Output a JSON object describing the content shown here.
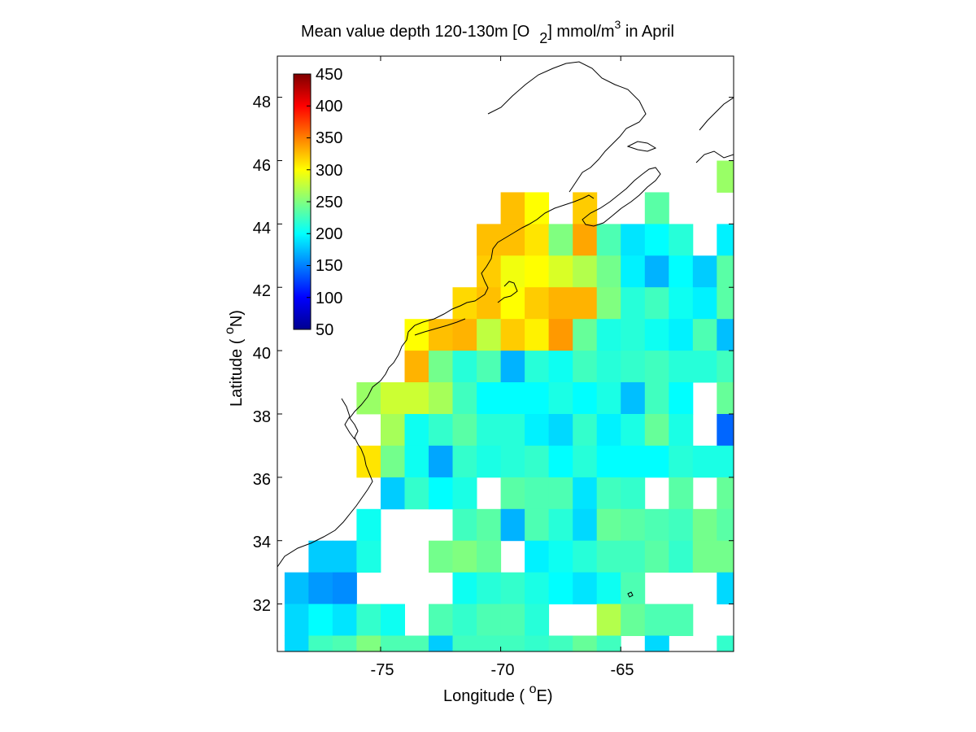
{
  "title": {
    "main": "Mean value depth 120-130m [O",
    "sub": "2",
    "mid": "] mmol/m",
    "sup": "3",
    "end": " in April"
  },
  "axes": {
    "x_label_pre": "Longitude ( ",
    "x_label_deg": "o",
    "x_label_post": "E)",
    "y_label_pre": "Latitude ( ",
    "y_label_deg": "o",
    "y_label_post": "N)",
    "x_ticks": [
      "-75",
      "-70",
      "-65"
    ],
    "y_ticks": [
      "32",
      "34",
      "36",
      "38",
      "40",
      "42",
      "44",
      "46",
      "48"
    ]
  },
  "colorbar": {
    "ticks": [
      "50",
      "100",
      "150",
      "200",
      "250",
      "300",
      "350",
      "400",
      "450"
    ],
    "colormap": "jet"
  },
  "chart_data": {
    "type": "heatmap",
    "title": "Mean value depth 120-130m [O2] mmol/m3 in April",
    "xlabel": "Longitude ( oE)",
    "ylabel": "Latitude ( oN)",
    "units": "mmol/m3",
    "xlim": [
      -79.3,
      -60.3
    ],
    "ylim": [
      30.5,
      49.3
    ],
    "clim": [
      50,
      450
    ],
    "cell_size_deg": 1,
    "grid": false,
    "colorbar_position": "top-left",
    "lon_columns": [
      -78.5,
      -77.5,
      -76.5,
      -75.5,
      -74.5,
      -73.5,
      -72.5,
      -71.5,
      -70.5,
      -69.5,
      -68.5,
      -67.5,
      -66.5,
      -65.5,
      -64.5,
      -63.5,
      -62.5,
      -61.5,
      -60.5
    ],
    "rows": [
      {
        "lat": 44.5,
        "values": [
          null,
          null,
          null,
          null,
          null,
          null,
          null,
          null,
          null,
          325,
          300,
          null,
          320,
          null,
          null,
          235,
          null,
          null,
          null
        ]
      },
      {
        "lat": 43.5,
        "values": [
          null,
          null,
          null,
          null,
          null,
          null,
          null,
          null,
          325,
          325,
          310,
          250,
          335,
          230,
          190,
          200,
          215,
          null,
          195
        ]
      },
      {
        "lat": 42.5,
        "values": [
          null,
          null,
          null,
          null,
          null,
          null,
          null,
          null,
          320,
          295,
          300,
          285,
          270,
          245,
          195,
          170,
          200,
          180,
          235
        ]
      },
      {
        "lat": 41.5,
        "values": [
          null,
          null,
          null,
          null,
          null,
          null,
          null,
          315,
          325,
          300,
          320,
          330,
          330,
          250,
          215,
          225,
          205,
          195,
          235
        ]
      },
      {
        "lat": 40.5,
        "values": [
          null,
          null,
          null,
          null,
          null,
          300,
          325,
          330,
          275,
          320,
          305,
          340,
          240,
          210,
          215,
          205,
          195,
          230,
          175
        ]
      },
      {
        "lat": 39.5,
        "values": [
          null,
          null,
          null,
          null,
          null,
          330,
          245,
          215,
          230,
          170,
          215,
          205,
          225,
          215,
          220,
          225,
          215,
          215,
          225
        ]
      },
      {
        "lat": 38.5,
        "values": [
          null,
          null,
          null,
          260,
          280,
          280,
          265,
          225,
          200,
          200,
          200,
          210,
          200,
          210,
          175,
          225,
          200,
          null,
          240
        ]
      },
      {
        "lat": 37.5,
        "values": [
          null,
          null,
          null,
          null,
          265,
          205,
          220,
          235,
          215,
          215,
          195,
          185,
          220,
          195,
          210,
          240,
          210,
          null,
          140
        ]
      },
      {
        "lat": 36.5,
        "values": [
          null,
          null,
          null,
          310,
          245,
          205,
          165,
          220,
          210,
          215,
          220,
          200,
          215,
          200,
          200,
          200,
          215,
          210,
          210
        ]
      },
      {
        "lat": 35.5,
        "values": [
          null,
          null,
          null,
          null,
          180,
          220,
          200,
          210,
          null,
          235,
          230,
          230,
          190,
          225,
          220,
          null,
          235,
          null,
          240
        ]
      },
      {
        "lat": 34.5,
        "values": [
          null,
          null,
          null,
          205,
          null,
          null,
          null,
          225,
          235,
          170,
          230,
          215,
          185,
          240,
          235,
          230,
          225,
          245,
          235
        ]
      },
      {
        "lat": 33.5,
        "values": [
          null,
          180,
          180,
          210,
          null,
          null,
          245,
          250,
          240,
          null,
          195,
          205,
          215,
          225,
          225,
          235,
          220,
          245,
          245
        ]
      },
      {
        "lat": 32.5,
        "values": [
          175,
          160,
          155,
          null,
          null,
          null,
          null,
          205,
          215,
          220,
          210,
          200,
          190,
          205,
          230,
          null,
          null,
          null,
          185
        ]
      },
      {
        "lat": 31.5,
        "values": [
          185,
          200,
          190,
          220,
          205,
          null,
          230,
          220,
          230,
          230,
          215,
          null,
          null,
          270,
          240,
          230,
          230,
          null,
          null
        ]
      },
      {
        "lat": 30.5,
        "values": [
          185,
          225,
          230,
          250,
          230,
          230,
          180,
          225,
          225,
          225,
          220,
          225,
          240,
          225,
          null,
          185,
          null,
          null,
          220
        ]
      },
      {
        "lat": 45.5,
        "values": [
          null,
          null,
          null,
          null,
          null,
          null,
          null,
          null,
          null,
          null,
          null,
          null,
          null,
          null,
          null,
          null,
          null,
          null,
          260
        ]
      }
    ]
  }
}
